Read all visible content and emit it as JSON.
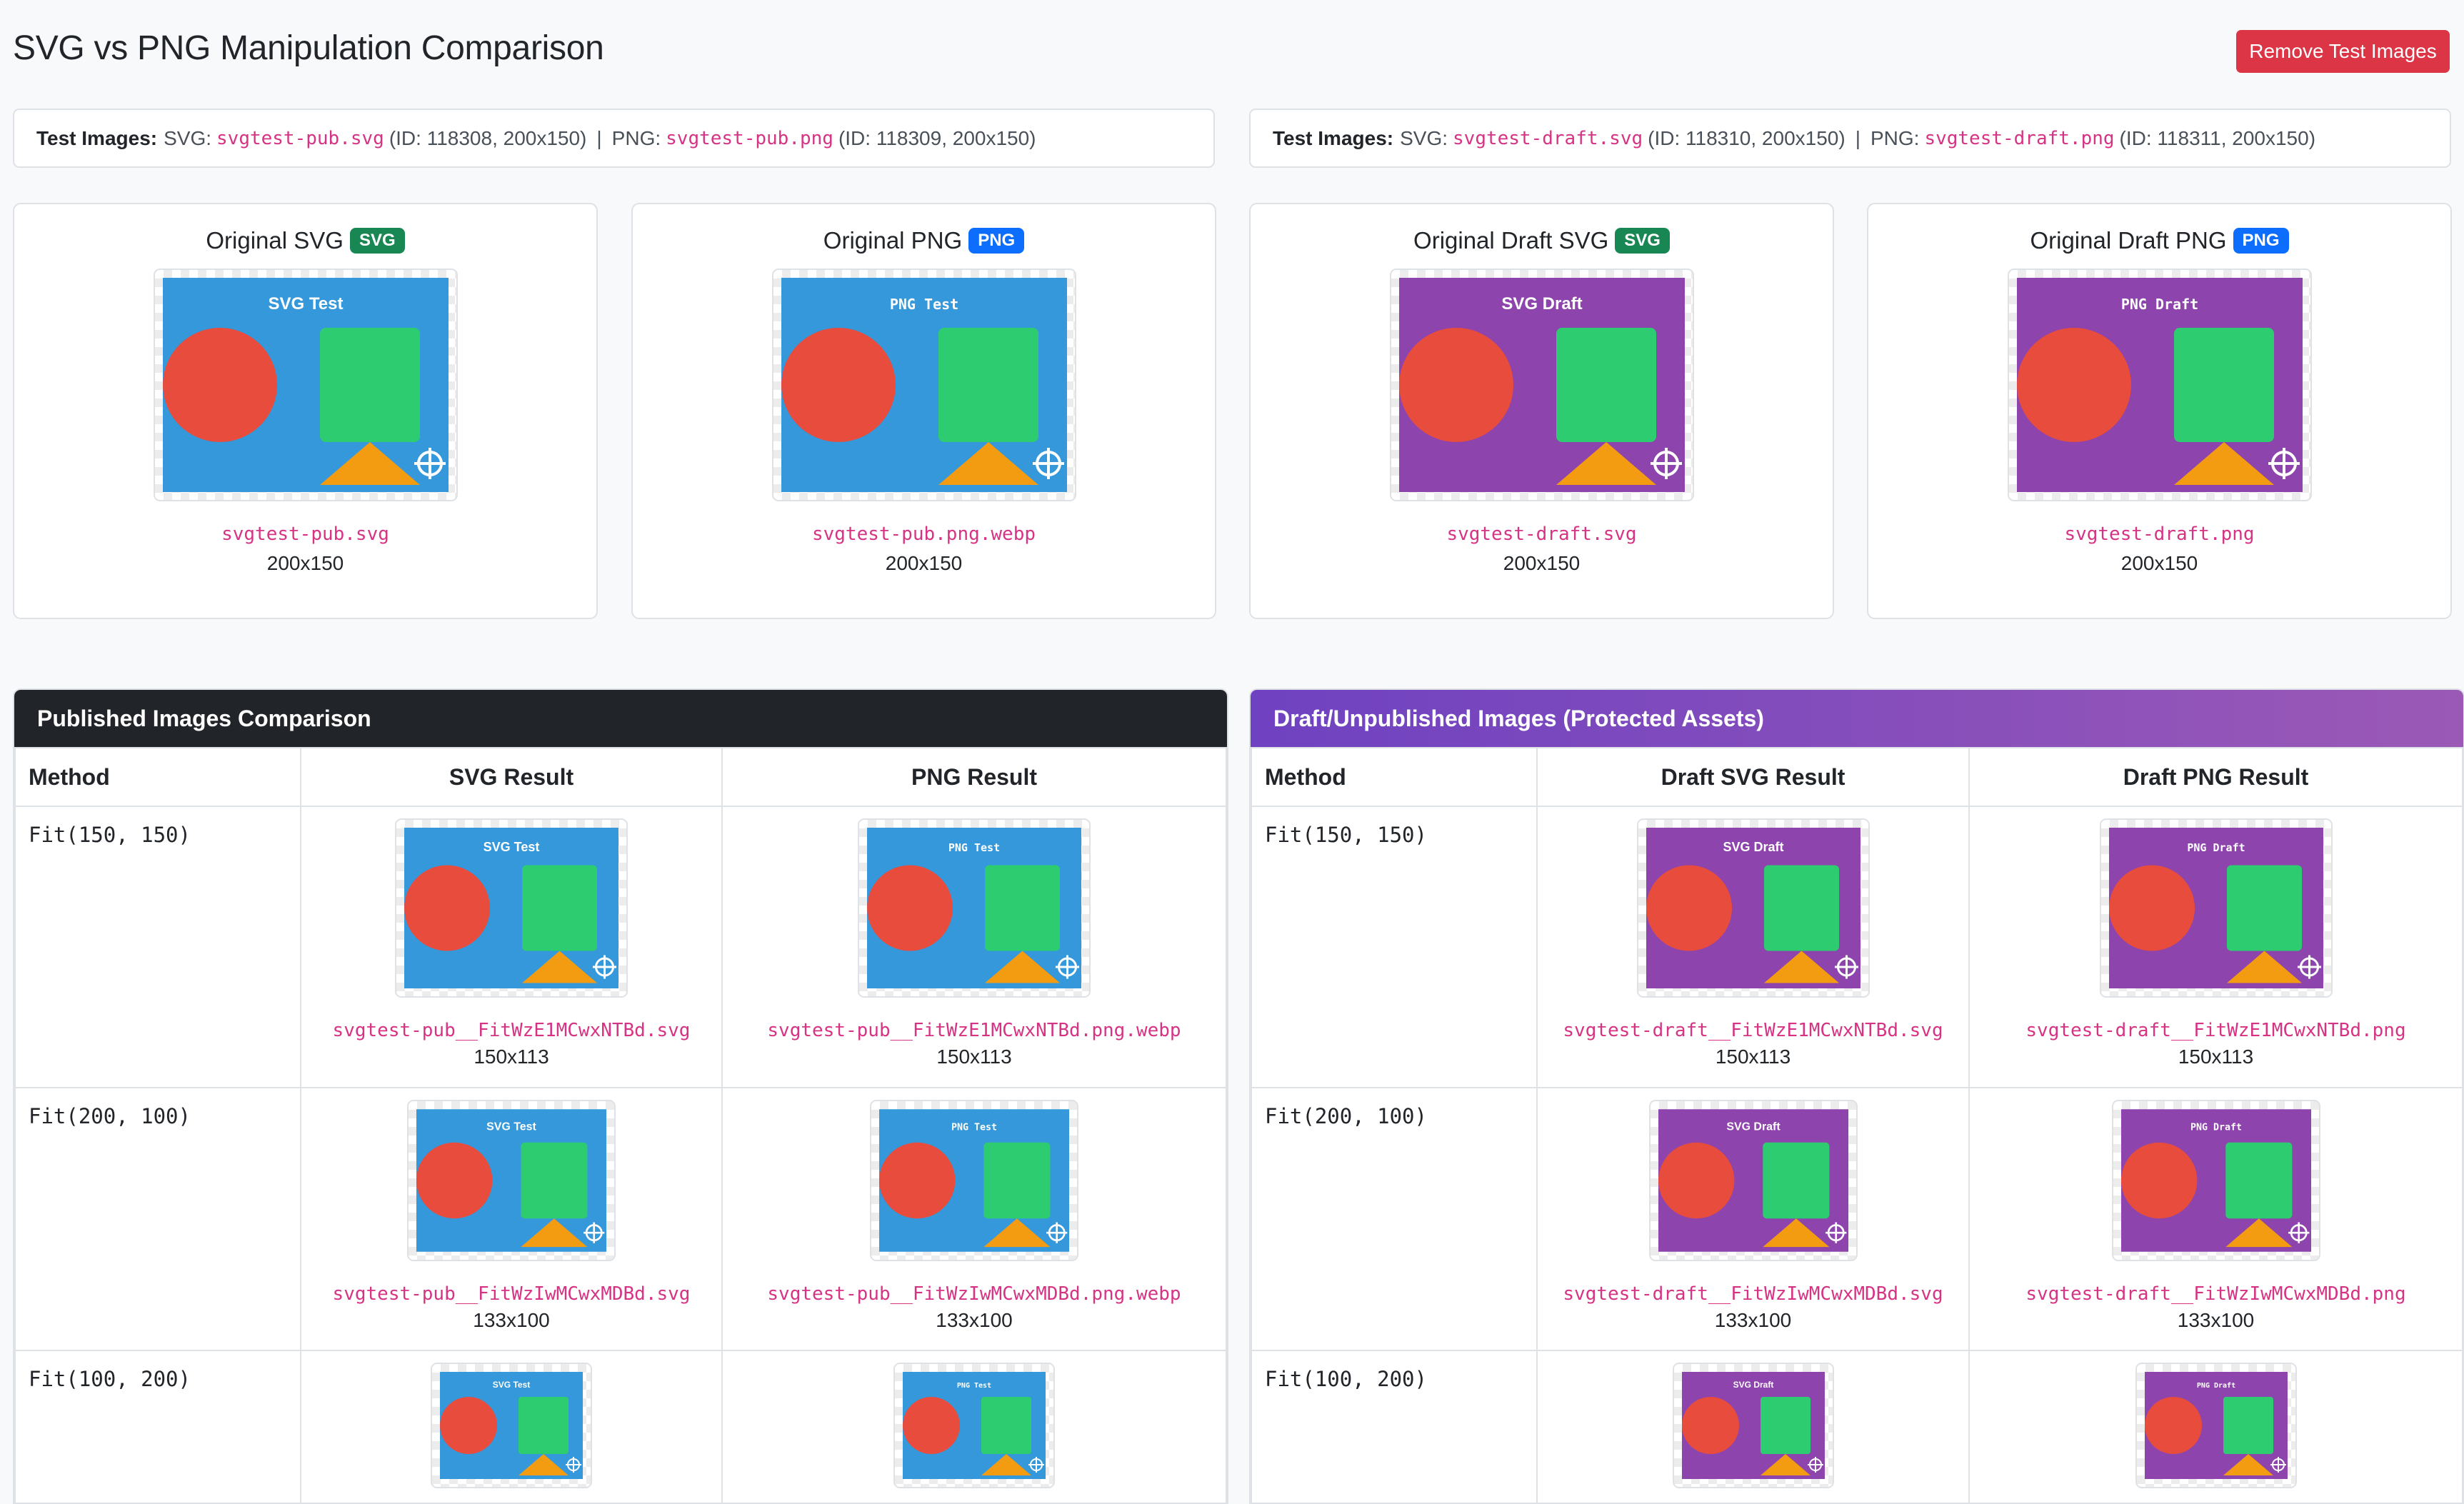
{
  "page": {
    "title": "SVG vs PNG Manipulation Comparison",
    "remove_button": "Remove Test Images"
  },
  "info_pub": {
    "label": "Test Images:",
    "svg_prefix": "SVG:",
    "svg_file": "svgtest-pub.svg",
    "svg_meta": "(ID: 118308, 200x150)",
    "sep": "|",
    "png_prefix": "PNG:",
    "png_file": "svgtest-pub.png",
    "png_meta": "(ID: 118309, 200x150)"
  },
  "info_draft": {
    "label": "Test Images:",
    "svg_prefix": "SVG:",
    "svg_file": "svgtest-draft.svg",
    "svg_meta": "(ID: 118310, 200x150)",
    "sep": "|",
    "png_prefix": "PNG:",
    "png_file": "svgtest-draft.png",
    "png_meta": "(ID: 118311, 200x150)"
  },
  "originals": [
    {
      "title": "Original SVG",
      "badge": "SVG",
      "file": "svgtest-pub.svg",
      "dims": "200x150",
      "image_text": "SVG Test",
      "bg": "#3498db"
    },
    {
      "title": "Original PNG",
      "badge": "PNG",
      "file": "svgtest-pub.png.webp",
      "dims": "200x150",
      "image_text": "PNG Test",
      "bg": "#3498db"
    },
    {
      "title": "Original Draft SVG",
      "badge": "SVG",
      "file": "svgtest-draft.svg",
      "dims": "200x150",
      "image_text": "SVG Draft",
      "bg": "#8e44ad"
    },
    {
      "title": "Original Draft PNG",
      "badge": "PNG",
      "file": "svgtest-draft.png",
      "dims": "200x150",
      "image_text": "PNG Draft",
      "bg": "#8e44ad"
    }
  ],
  "published": {
    "header": "Published Images Comparison",
    "columns": [
      "Method",
      "SVG Result",
      "PNG Result"
    ],
    "svg_image_text": "SVG Test",
    "png_image_text": "PNG Test",
    "rows": [
      {
        "method": "Fit(150, 150)",
        "svg_file": "svgtest-pub__FitWzE1MCwxNTBd.svg",
        "svg_dims": "150x113",
        "png_file": "svgtest-pub__FitWzE1MCwxNTBd.png.webp",
        "png_dims": "150x113"
      },
      {
        "method": "Fit(200, 100)",
        "svg_file": "svgtest-pub__FitWzIwMCwxMDBd.svg",
        "svg_dims": "133x100",
        "png_file": "svgtest-pub__FitWzIwMCwxMDBd.png.webp",
        "png_dims": "133x100"
      },
      {
        "method": "Fit(100, 200)"
      }
    ]
  },
  "draft": {
    "header": "Draft/Unpublished Images (Protected Assets)",
    "columns": [
      "Method",
      "Draft SVG Result",
      "Draft PNG Result"
    ],
    "svg_image_text": "SVG Draft",
    "png_image_text": "PNG Draft",
    "rows": [
      {
        "method": "Fit(150, 150)",
        "svg_file": "svgtest-draft__FitWzE1MCwxNTBd.svg",
        "svg_dims": "150x113",
        "png_file": "svgtest-draft__FitWzE1MCwxNTBd.png",
        "png_dims": "150x113"
      },
      {
        "method": "Fit(200, 100)",
        "svg_file": "svgtest-draft__FitWzIwMCwxMDBd.svg",
        "svg_dims": "133x100",
        "png_file": "svgtest-draft__FitWzIwMCwxMDBd.png",
        "png_dims": "133x100"
      },
      {
        "method": "Fit(100, 200)"
      }
    ]
  },
  "colors": {
    "blue_bg": "#3498db",
    "purple_bg": "#8e44ad",
    "circle": "#e74c3c",
    "square": "#2ecc71",
    "triangle": "#f39c12",
    "danger": "#dc3545",
    "code": "#d63384"
  },
  "icons": [
    "crosshair-icon"
  ]
}
